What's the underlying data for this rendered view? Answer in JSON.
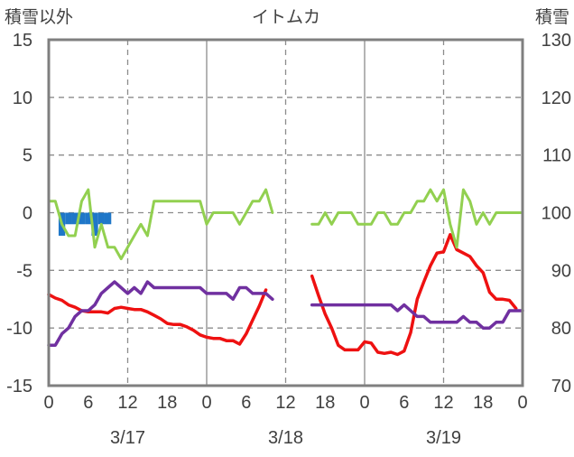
{
  "chart_data": {
    "type": "line",
    "title": "イトムカ",
    "left_axis_label": "積雪以外",
    "right_axis_label": "積雪",
    "left_ylim": [
      -15,
      15
    ],
    "left_yticks": [
      15,
      10,
      5,
      0,
      -5,
      -10,
      -15
    ],
    "right_ylim": [
      70,
      130
    ],
    "right_yticks": [
      130,
      120,
      110,
      100,
      90,
      80,
      70
    ],
    "x_range_hours": [
      0,
      72
    ],
    "x_tick_labels": [
      "0",
      "6",
      "12",
      "18",
      "0",
      "6",
      "12",
      "18",
      "0",
      "6",
      "12",
      "18",
      "0"
    ],
    "day_labels": [
      {
        "hour": 12,
        "label": "3/17"
      },
      {
        "hour": 36,
        "label": "3/18"
      },
      {
        "hour": 60,
        "label": "3/19"
      }
    ],
    "series": [
      {
        "name": "bar",
        "kind": "bar",
        "axis": "left",
        "color": "#1f77c8",
        "bars": [
          {
            "hour": 2,
            "value": -2
          },
          {
            "hour": 3,
            "value": -1
          },
          {
            "hour": 4,
            "value": -1
          },
          {
            "hour": 5,
            "value": -1
          },
          {
            "hour": 6,
            "value": -1
          },
          {
            "hour": 7,
            "value": -2
          },
          {
            "hour": 8,
            "value": -1
          },
          {
            "hour": 9,
            "value": -1
          }
        ]
      },
      {
        "name": "red",
        "axis": "left",
        "color": "#ee1111",
        "segments": [
          [
            [
              0,
              -7.1
            ],
            [
              1,
              -7.4
            ],
            [
              2,
              -7.6
            ],
            [
              3,
              -8.0
            ],
            [
              4,
              -8.2
            ],
            [
              5,
              -8.5
            ],
            [
              6,
              -8.6
            ],
            [
              7,
              -8.6
            ],
            [
              8,
              -8.6
            ],
            [
              9,
              -8.7
            ],
            [
              10,
              -8.3
            ],
            [
              11,
              -8.2
            ],
            [
              12,
              -8.3
            ],
            [
              13,
              -8.4
            ],
            [
              14,
              -8.4
            ],
            [
              15,
              -8.6
            ],
            [
              16,
              -8.9
            ],
            [
              17,
              -9.2
            ],
            [
              18,
              -9.6
            ],
            [
              19,
              -9.7
            ],
            [
              20,
              -9.7
            ],
            [
              21,
              -9.9
            ],
            [
              22,
              -10.2
            ],
            [
              23,
              -10.6
            ],
            [
              24,
              -10.8
            ],
            [
              25,
              -10.9
            ],
            [
              26,
              -10.9
            ],
            [
              27,
              -11.1
            ],
            [
              28,
              -11.1
            ],
            [
              29,
              -11.4
            ],
            [
              30,
              -10.5
            ],
            [
              31,
              -9.3
            ],
            [
              32,
              -8.1
            ],
            [
              33,
              -6.7
            ]
          ],
          [
            [
              40,
              -5.5
            ],
            [
              41,
              -7.2
            ],
            [
              42,
              -8.8
            ],
            [
              43,
              -10.0
            ],
            [
              44,
              -11.5
            ],
            [
              45,
              -11.9
            ],
            [
              46,
              -11.9
            ],
            [
              47,
              -11.9
            ],
            [
              48,
              -11.2
            ],
            [
              49,
              -11.3
            ],
            [
              50,
              -12.1
            ],
            [
              51,
              -12.2
            ],
            [
              52,
              -12.1
            ],
            [
              53,
              -12.3
            ],
            [
              54,
              -12.0
            ],
            [
              55,
              -10.4
            ],
            [
              56,
              -7.5
            ],
            [
              57,
              -6.0
            ],
            [
              58,
              -4.6
            ],
            [
              59,
              -3.5
            ],
            [
              60,
              -3.4
            ],
            [
              61,
              -1.9
            ],
            [
              62,
              -3.2
            ],
            [
              63,
              -3.5
            ],
            [
              64,
              -3.8
            ],
            [
              65,
              -4.6
            ],
            [
              66,
              -5.2
            ],
            [
              67,
              -6.9
            ],
            [
              68,
              -7.5
            ],
            [
              69,
              -7.5
            ],
            [
              70,
              -7.6
            ],
            [
              71,
              -8.3
            ]
          ]
        ]
      },
      {
        "name": "green",
        "axis": "left",
        "color": "#92d050",
        "segments": [
          [
            [
              0,
              1
            ],
            [
              1,
              1
            ],
            [
              2,
              -1
            ],
            [
              3,
              -2
            ],
            [
              4,
              -2
            ],
            [
              5,
              1
            ],
            [
              6,
              2
            ],
            [
              7,
              -3
            ],
            [
              8,
              -1
            ],
            [
              9,
              -3
            ],
            [
              10,
              -3
            ],
            [
              11,
              -4
            ],
            [
              12,
              -3
            ],
            [
              13,
              -2
            ],
            [
              14,
              -1
            ],
            [
              15,
              -2
            ],
            [
              16,
              1
            ],
            [
              17,
              1
            ],
            [
              18,
              1
            ],
            [
              19,
              1
            ],
            [
              20,
              1
            ],
            [
              21,
              1
            ],
            [
              22,
              1
            ],
            [
              23,
              1
            ],
            [
              24,
              -1
            ],
            [
              25,
              0
            ],
            [
              26,
              0
            ],
            [
              27,
              0
            ],
            [
              28,
              0
            ],
            [
              29,
              -1
            ],
            [
              30,
              0
            ],
            [
              31,
              1
            ],
            [
              32,
              1
            ],
            [
              33,
              2
            ],
            [
              34,
              0
            ]
          ],
          [
            [
              40,
              -1
            ],
            [
              41,
              -1
            ],
            [
              42,
              0
            ],
            [
              43,
              -1
            ],
            [
              44,
              0
            ],
            [
              45,
              0
            ],
            [
              46,
              0
            ],
            [
              47,
              -1
            ],
            [
              48,
              -1
            ],
            [
              49,
              -1
            ],
            [
              50,
              0
            ],
            [
              51,
              0
            ],
            [
              52,
              -1
            ],
            [
              53,
              -1
            ],
            [
              54,
              0
            ],
            [
              55,
              0
            ],
            [
              56,
              1
            ],
            [
              57,
              1
            ],
            [
              58,
              2
            ],
            [
              59,
              1
            ],
            [
              60,
              2
            ],
            [
              61,
              -1
            ],
            [
              62,
              -3
            ],
            [
              63,
              2
            ],
            [
              64,
              1
            ],
            [
              65,
              -1
            ],
            [
              66,
              0
            ],
            [
              67,
              -1
            ],
            [
              68,
              0
            ],
            [
              69,
              0
            ],
            [
              70,
              0
            ],
            [
              71,
              0
            ],
            [
              72,
              0
            ]
          ]
        ]
      },
      {
        "name": "purple",
        "axis": "right",
        "color": "#7030a0",
        "segments": [
          [
            [
              0,
              77
            ],
            [
              1,
              77
            ],
            [
              2,
              79
            ],
            [
              3,
              80
            ],
            [
              4,
              82
            ],
            [
              5,
              83
            ],
            [
              6,
              83
            ],
            [
              7,
              84
            ],
            [
              8,
              86
            ],
            [
              9,
              87
            ],
            [
              10,
              88
            ],
            [
              11,
              87
            ],
            [
              12,
              86
            ],
            [
              13,
              87
            ],
            [
              14,
              86
            ],
            [
              15,
              88
            ],
            [
              16,
              87
            ],
            [
              17,
              87
            ],
            [
              18,
              87
            ],
            [
              19,
              87
            ],
            [
              20,
              87
            ],
            [
              21,
              87
            ],
            [
              22,
              87
            ],
            [
              23,
              87
            ],
            [
              24,
              86
            ],
            [
              25,
              86
            ],
            [
              26,
              86
            ],
            [
              27,
              86
            ],
            [
              28,
              85
            ],
            [
              29,
              87
            ],
            [
              30,
              87
            ],
            [
              31,
              86
            ],
            [
              32,
              86
            ],
            [
              33,
              86
            ],
            [
              34,
              85
            ]
          ],
          [
            [
              40,
              84
            ],
            [
              41,
              84
            ],
            [
              42,
              84
            ],
            [
              43,
              84
            ],
            [
              44,
              84
            ],
            [
              45,
              84
            ],
            [
              46,
              84
            ],
            [
              47,
              84
            ],
            [
              48,
              84
            ],
            [
              49,
              84
            ],
            [
              50,
              84
            ],
            [
              51,
              84
            ],
            [
              52,
              84
            ],
            [
              53,
              83
            ],
            [
              54,
              84
            ],
            [
              55,
              83
            ],
            [
              56,
              82
            ],
            [
              57,
              82
            ],
            [
              58,
              81
            ],
            [
              59,
              81
            ],
            [
              60,
              81
            ],
            [
              61,
              81
            ],
            [
              62,
              81
            ],
            [
              63,
              82
            ],
            [
              64,
              81
            ],
            [
              65,
              81
            ],
            [
              66,
              80
            ],
            [
              67,
              80
            ],
            [
              68,
              81
            ],
            [
              69,
              81
            ],
            [
              70,
              83
            ],
            [
              71,
              83
            ],
            [
              72,
              83
            ]
          ]
        ]
      }
    ]
  }
}
